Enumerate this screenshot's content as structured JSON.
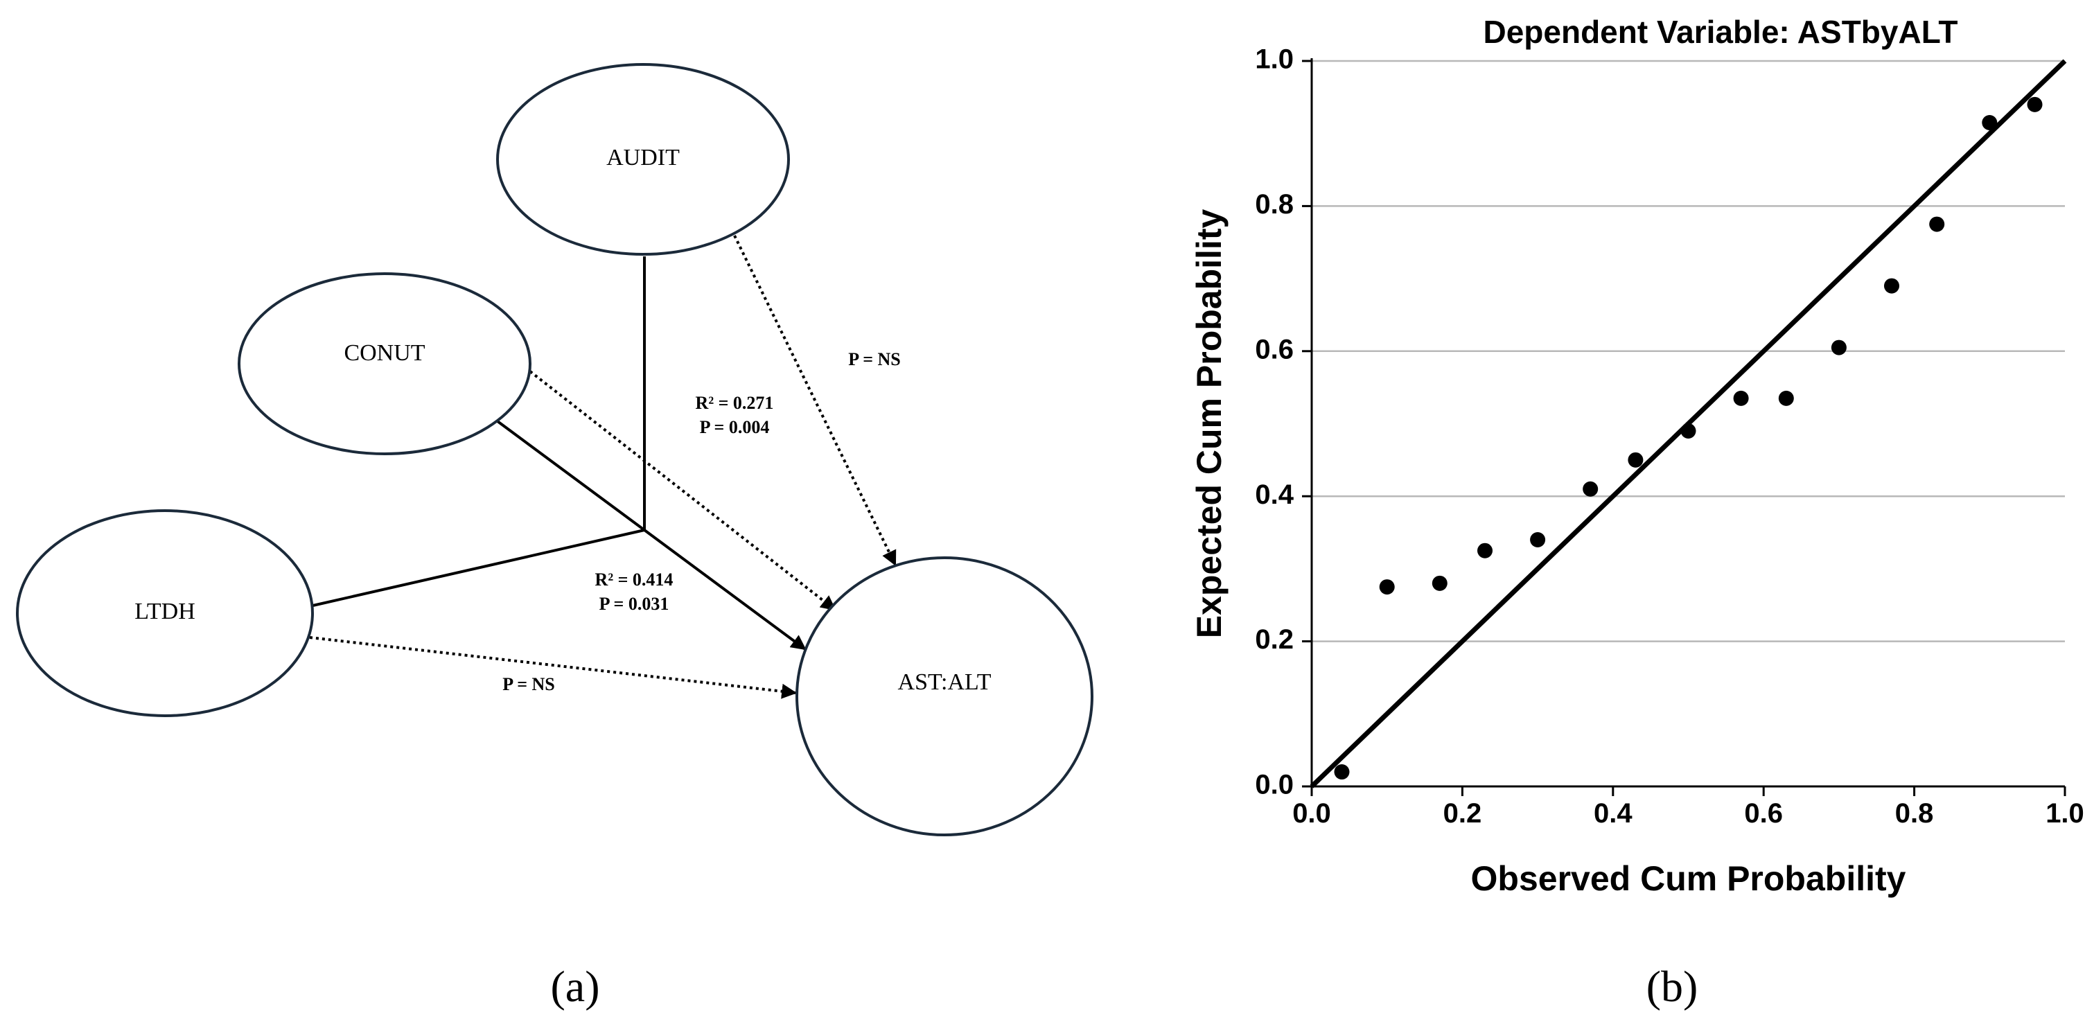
{
  "panel_a": {
    "caption": "(a)",
    "nodes": {
      "audit": "AUDIT",
      "conut": "CONUT",
      "ltdh": "LTDH",
      "ast_alt": "AST:ALT"
    },
    "labels": {
      "audit_p": "P = NS",
      "ltdh_p": "P = NS",
      "r2_upper": "R² = 0.271",
      "p_upper": "P = 0.004",
      "r2_lower": "R² = 0.414",
      "p_lower": "P = 0.031"
    }
  },
  "panel_b": {
    "caption": "(b)"
  },
  "chart_data": {
    "type": "scatter",
    "title": "Dependent Variable: ASTbyALT",
    "xlabel": "Observed Cum Probability",
    "ylabel": "Expected Cum Probability",
    "xlim": [
      0.0,
      1.0
    ],
    "ylim": [
      0.0,
      1.0
    ],
    "xticks": [
      "0.0",
      "0.2",
      "0.4",
      "0.6",
      "0.8",
      "1.0"
    ],
    "yticks": [
      "0.0",
      "0.2",
      "0.4",
      "0.6",
      "0.8",
      "1.0"
    ],
    "grid": "horizontal",
    "reference_line": [
      [
        0.0,
        0.0
      ],
      [
        1.0,
        1.0
      ]
    ],
    "points": [
      {
        "x": 0.04,
        "y": 0.02
      },
      {
        "x": 0.1,
        "y": 0.275
      },
      {
        "x": 0.17,
        "y": 0.28
      },
      {
        "x": 0.23,
        "y": 0.325
      },
      {
        "x": 0.3,
        "y": 0.34
      },
      {
        "x": 0.37,
        "y": 0.41
      },
      {
        "x": 0.43,
        "y": 0.45
      },
      {
        "x": 0.5,
        "y": 0.49
      },
      {
        "x": 0.57,
        "y": 0.535
      },
      {
        "x": 0.63,
        "y": 0.535
      },
      {
        "x": 0.7,
        "y": 0.605
      },
      {
        "x": 0.77,
        "y": 0.69
      },
      {
        "x": 0.83,
        "y": 0.775
      },
      {
        "x": 0.9,
        "y": 0.915
      },
      {
        "x": 0.96,
        "y": 0.94
      }
    ]
  }
}
